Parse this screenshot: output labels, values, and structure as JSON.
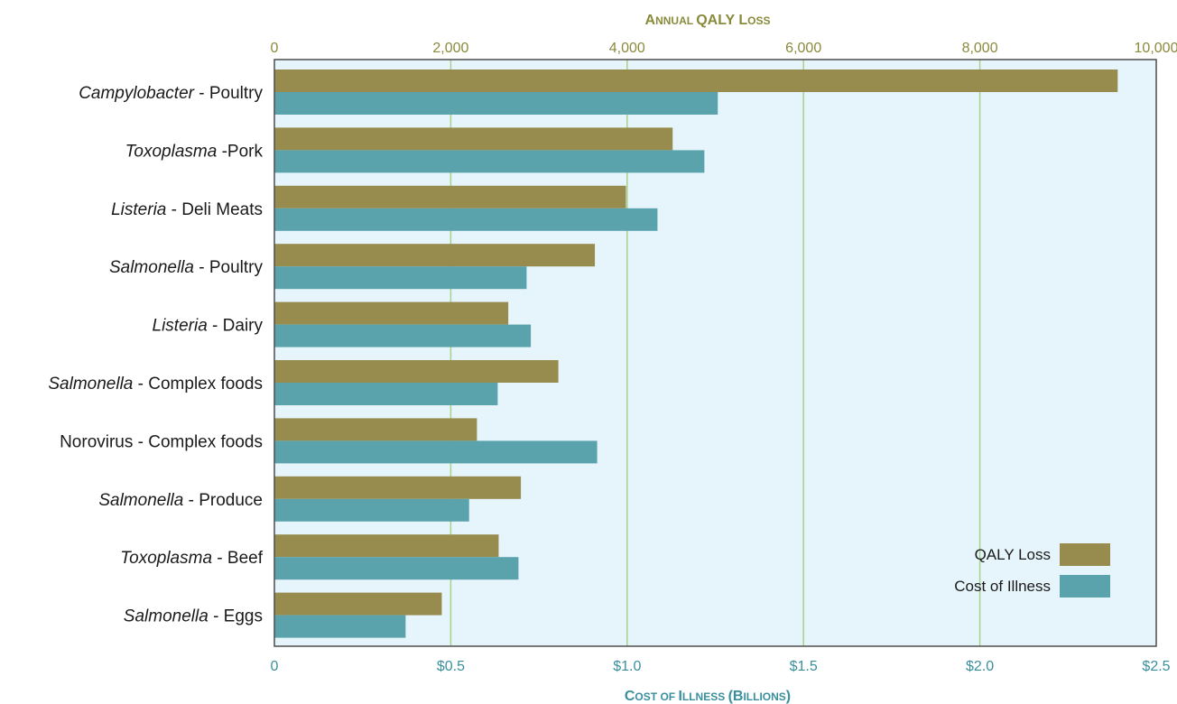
{
  "chart_data": {
    "type": "bar",
    "orientation": "horizontal",
    "categories": [
      [
        "Campylobacter",
        " - Poultry"
      ],
      [
        "Toxoplasma",
        " -Pork"
      ],
      [
        "Listeria",
        " - Deli Meats"
      ],
      [
        "Salmonella",
        " - Poultry"
      ],
      [
        "Listeria",
        " - Dairy"
      ],
      [
        "Salmonella",
        " - Complex foods"
      ],
      [
        "",
        "Norovirus - Complex foods"
      ],
      [
        "Salmonella",
        " - Produce"
      ],
      [
        "Toxoplasma",
        " - Beef"
      ],
      [
        "Salmonella",
        " - Eggs"
      ]
    ],
    "series": [
      {
        "name": "QALY Loss",
        "axis": "top",
        "color": "#978c4d",
        "values": [
          9563,
          4516,
          3987,
          3634,
          2652,
          3220,
          2297,
          2795,
          2543,
          1898
        ]
      },
      {
        "name": "Cost of Illness",
        "axis": "bottom",
        "color": "#5aa3ad",
        "values": [
          1.257,
          1.219,
          1.086,
          0.715,
          0.727,
          0.633,
          0.915,
          0.552,
          0.692,
          0.372
        ]
      }
    ],
    "top_axis": {
      "title": "Annual QALY Loss",
      "range": [
        0,
        10000
      ],
      "ticks": [
        "0",
        "2,000",
        "4,000",
        "6,000",
        "8,000",
        "10,000"
      ],
      "color": "#8a8a3c"
    },
    "bottom_axis": {
      "title": "Cost of Illness (Billions)",
      "range": [
        0,
        2.5
      ],
      "ticks": [
        "0",
        "$0.5",
        "$1.0",
        "$1.5",
        "$2.0",
        "$2.5"
      ],
      "color": "#3a8f9c"
    },
    "plot_background": "#e6f5fb",
    "gridline_color": "#a9d08e",
    "grid": true,
    "legend_position": "bottom-right"
  }
}
